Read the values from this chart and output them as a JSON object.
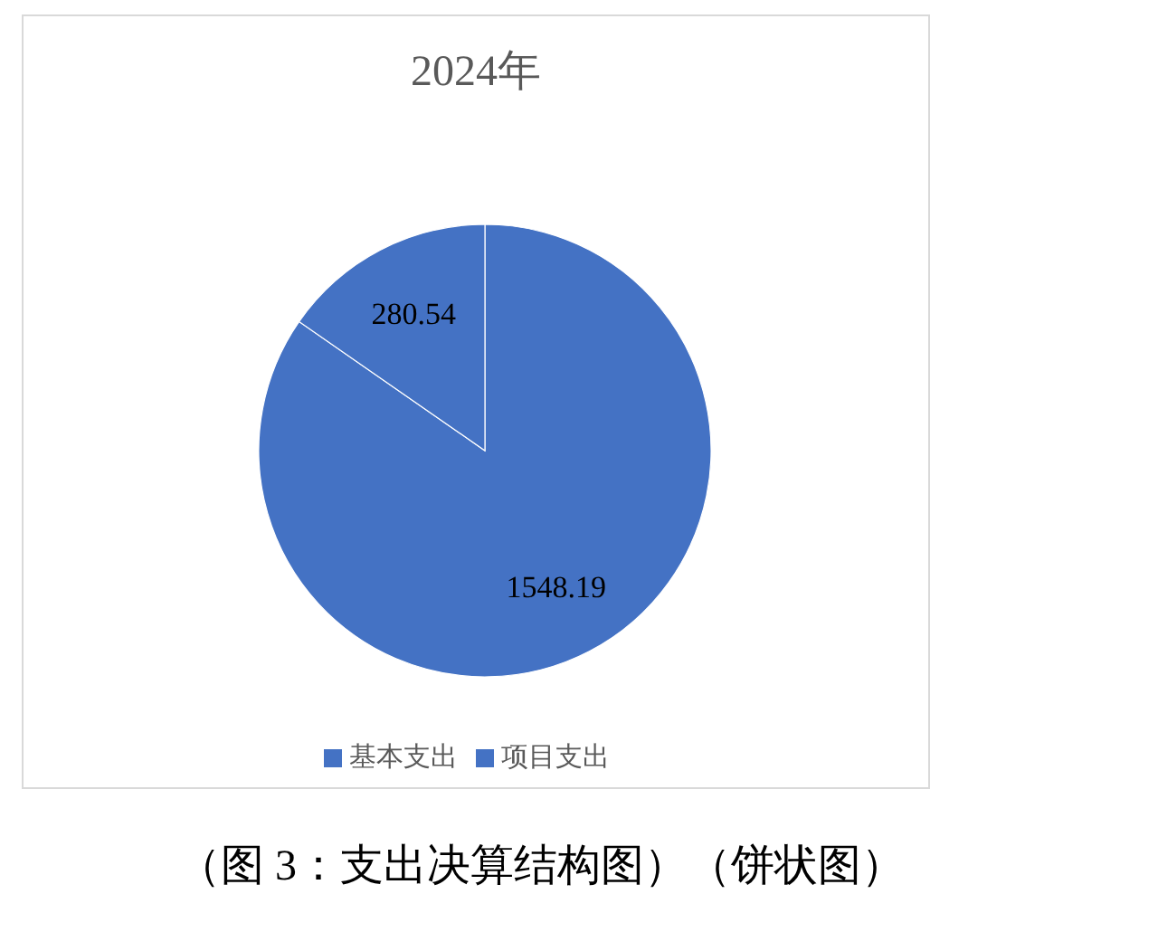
{
  "chart_data": {
    "type": "pie",
    "title": "2024年",
    "categories": [
      "基本支出",
      "项目支出"
    ],
    "values": [
      1548.19,
      280.54
    ],
    "colors": [
      "#4472c4",
      "#4472c4"
    ],
    "data_labels": true,
    "legend": "bottom",
    "annotations": [
      "（图 3：支出决算结构图）（饼状图）"
    ]
  }
}
